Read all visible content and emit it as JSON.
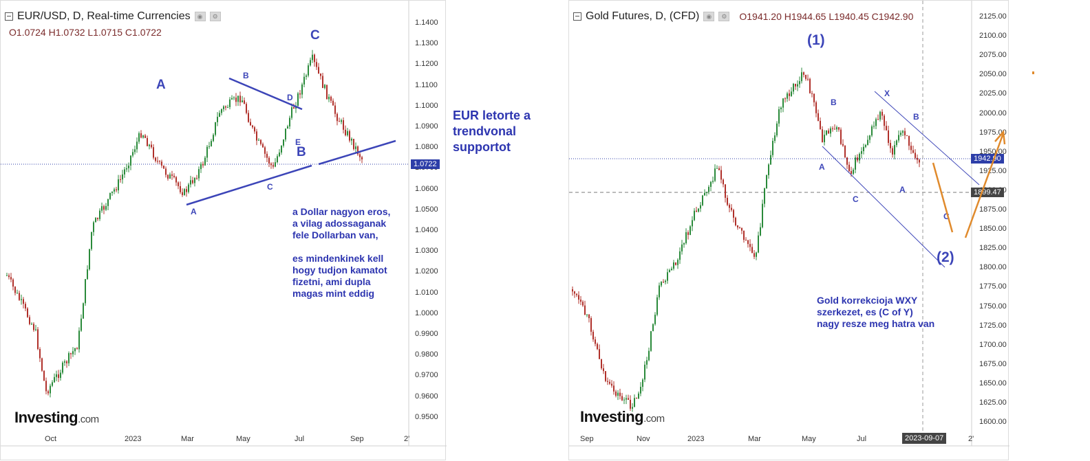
{
  "left_chart": {
    "title": "EUR/USD, D, Real-time Currencies",
    "ohlc": "O1.0724  H1.0732  L1.0715  C1.0722",
    "price_label": "1.0722",
    "y_ticks": [
      "1.1400",
      "1.1300",
      "1.1200",
      "1.1100",
      "1.1000",
      "1.0900",
      "1.0800",
      "1.0700",
      "1.0600",
      "1.0500",
      "1.0400",
      "1.0300",
      "1.0200",
      "1.0100",
      "1.0000",
      "0.9900",
      "0.9800",
      "0.9700",
      "0.9600",
      "0.9500"
    ],
    "x_ticks": [
      "Oct",
      "2023",
      "Mar",
      "May",
      "Jul",
      "Sep",
      "2'"
    ],
    "waves": {
      "A_big": "A",
      "B_small": "B",
      "C_big": "C",
      "D_small": "D",
      "E_small": "E",
      "B_big": "B",
      "C_small": "C",
      "A_small": "A"
    },
    "note": [
      "a Dollar nagyon eros,",
      "a vilag adossaganak",
      "fele Dollarban van,",
      "",
      "es mindenkinek kell",
      "hogy tudjon kamatot",
      "fizetni, ami dupla",
      "magas mint eddig"
    ],
    "brand": "Investing",
    "brand_domain": ".com"
  },
  "middle_note": [
    "EUR letorte a",
    "trendvonal",
    "supportot"
  ],
  "right_chart": {
    "title": "Gold Futures, D, (CFD)",
    "ohlc": "O1941.20  H1944.65  L1940.45  C1942.90",
    "price_label": "1942.90",
    "line_label": "1899.47",
    "date_label": "2023-09-07",
    "y_ticks": [
      "2125.00",
      "2100.00",
      "2075.00",
      "2050.00",
      "2025.00",
      "2000.00",
      "1975.00",
      "1950.00",
      "1925.00",
      "1900.00",
      "1875.00",
      "1850.00",
      "1825.00",
      "1800.00",
      "1775.00",
      "1750.00",
      "1725.00",
      "1700.00",
      "1675.00",
      "1650.00",
      "1625.00",
      "1600.00"
    ],
    "x_ticks": [
      "Sep",
      "Nov",
      "2023",
      "Mar",
      "May",
      "Jul",
      "2'"
    ],
    "waves": {
      "one": "(1)",
      "two": "(2)",
      "X": "X",
      "B1": "B",
      "B2": "B",
      "A1": "A",
      "A2": "A",
      "C1": "C",
      "C2": "C"
    },
    "note": [
      "Gold korrekcioja WXY",
      "szerkezet, es (C of Y)",
      "nagy resze meg hatra van"
    ],
    "brand": "Investing",
    "brand_domain": ".com"
  },
  "colors": {
    "bull": "#2a8a3a",
    "bear": "#b0302a",
    "annotation": "#3c45b8",
    "orange": "#e08a2c"
  }
}
